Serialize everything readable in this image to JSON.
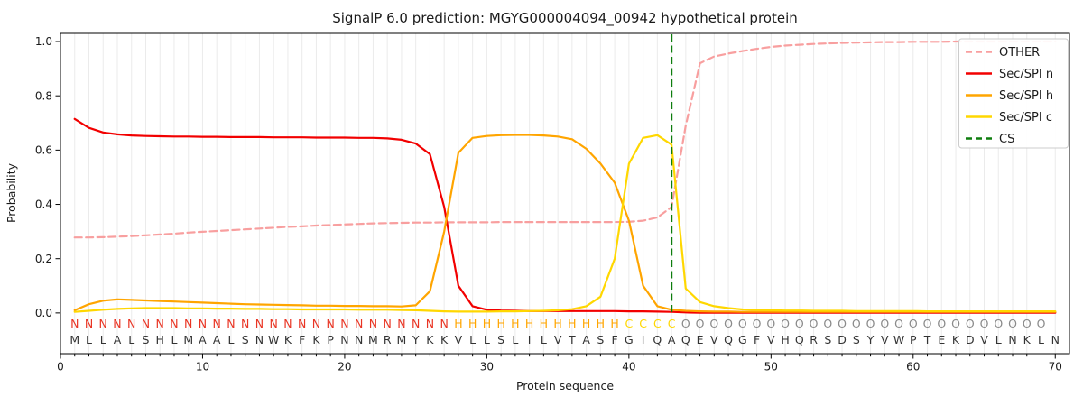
{
  "chart_data": {
    "type": "line",
    "title": "SignalP 6.0 prediction: MGYG000004094_00942 hypothetical protein",
    "xlabel": "Protein sequence",
    "ylabel": "Probability",
    "xlim": [
      0,
      71
    ],
    "ylim": [
      -0.15,
      1.03
    ],
    "xticks": [
      0,
      10,
      20,
      30,
      40,
      50,
      60,
      70
    ],
    "yticks": [
      "0.0",
      "0.2",
      "0.4",
      "0.6",
      "0.8",
      "1.0"
    ],
    "grid": "vertical line at every residue, light gray",
    "legend_position": "upper right",
    "x_positions": "residues 1-70",
    "series": [
      {
        "name": "OTHER",
        "color": "#f89f9f",
        "dash": "dashed",
        "values": [
          0.278,
          0.278,
          0.279,
          0.281,
          0.283,
          0.286,
          0.289,
          0.292,
          0.296,
          0.299,
          0.302,
          0.305,
          0.308,
          0.311,
          0.314,
          0.317,
          0.319,
          0.322,
          0.324,
          0.326,
          0.328,
          0.33,
          0.331,
          0.332,
          0.333,
          0.333,
          0.334,
          0.334,
          0.334,
          0.334,
          0.335,
          0.335,
          0.335,
          0.335,
          0.335,
          0.335,
          0.335,
          0.335,
          0.335,
          0.336,
          0.34,
          0.352,
          0.39,
          0.69,
          0.92,
          0.945,
          0.956,
          0.965,
          0.973,
          0.98,
          0.985,
          0.988,
          0.991,
          0.993,
          0.995,
          0.996,
          0.997,
          0.998,
          0.998,
          0.999,
          0.999,
          0.999,
          1.0,
          1.0,
          1.0,
          1.0,
          1.0,
          1.0,
          1.0,
          1.0
        ]
      },
      {
        "name": "Sec/SPI n",
        "color": "#f20000",
        "dash": "solid",
        "values": [
          0.715,
          0.682,
          0.665,
          0.658,
          0.654,
          0.652,
          0.651,
          0.65,
          0.65,
          0.649,
          0.649,
          0.648,
          0.648,
          0.648,
          0.647,
          0.647,
          0.647,
          0.646,
          0.646,
          0.646,
          0.645,
          0.645,
          0.643,
          0.638,
          0.624,
          0.585,
          0.39,
          0.1,
          0.025,
          0.012,
          0.009,
          0.008,
          0.007,
          0.007,
          0.007,
          0.007,
          0.007,
          0.007,
          0.007,
          0.006,
          0.006,
          0.005,
          0.004,
          0.002,
          0.001,
          0.001,
          0.001,
          0.001,
          0.001,
          0.001,
          0.001,
          0.001,
          0.001,
          0.001,
          0.001,
          0.001,
          0.001,
          0.001,
          0.001,
          0.001,
          0.001,
          0.001,
          0.001,
          0.001,
          0.001,
          0.001,
          0.001,
          0.001,
          0.001,
          0.001
        ]
      },
      {
        "name": "Sec/SPI h",
        "color": "#ffa500",
        "dash": "solid",
        "values": [
          0.01,
          0.032,
          0.045,
          0.05,
          0.048,
          0.046,
          0.044,
          0.042,
          0.04,
          0.038,
          0.036,
          0.034,
          0.032,
          0.031,
          0.03,
          0.029,
          0.028,
          0.027,
          0.027,
          0.026,
          0.026,
          0.025,
          0.025,
          0.024,
          0.028,
          0.08,
          0.3,
          0.59,
          0.645,
          0.652,
          0.655,
          0.656,
          0.656,
          0.654,
          0.65,
          0.64,
          0.605,
          0.55,
          0.48,
          0.34,
          0.1,
          0.025,
          0.012,
          0.008,
          0.006,
          0.005,
          0.005,
          0.004,
          0.004,
          0.004,
          0.004,
          0.004,
          0.004,
          0.004,
          0.004,
          0.004,
          0.004,
          0.004,
          0.004,
          0.004,
          0.004,
          0.004,
          0.004,
          0.004,
          0.004,
          0.004,
          0.004,
          0.004,
          0.004,
          0.004
        ]
      },
      {
        "name": "Sec/SPI c",
        "color": "#ffd700",
        "dash": "solid",
        "values": [
          0.004,
          0.008,
          0.012,
          0.015,
          0.017,
          0.018,
          0.018,
          0.018,
          0.017,
          0.017,
          0.016,
          0.016,
          0.015,
          0.015,
          0.014,
          0.014,
          0.013,
          0.013,
          0.013,
          0.013,
          0.012,
          0.012,
          0.012,
          0.011,
          0.01,
          0.008,
          0.006,
          0.005,
          0.005,
          0.005,
          0.006,
          0.006,
          0.007,
          0.008,
          0.01,
          0.014,
          0.025,
          0.06,
          0.2,
          0.55,
          0.645,
          0.655,
          0.62,
          0.09,
          0.04,
          0.025,
          0.018,
          0.013,
          0.011,
          0.01,
          0.009,
          0.009,
          0.008,
          0.008,
          0.008,
          0.007,
          0.007,
          0.007,
          0.007,
          0.007,
          0.006,
          0.006,
          0.006,
          0.006,
          0.006,
          0.006,
          0.006,
          0.006,
          0.006,
          0.006
        ]
      }
    ],
    "cs_marker": {
      "name": "CS",
      "position": 43,
      "color": "#0d7d0d",
      "dash": "dashed"
    },
    "sequence": "MLLALSHLMAALSNWKFKPNNMRMYKKVLLSLILVTASFGIQAQEVQGFVHQRSDSYVWPTEKDVLNKLN",
    "region_labels": "NNNNNNNNNNNNNNNNNNNNNNNNNNNHHHHHHHHHHHHCCCCOOOOOOOOOOOOOOOOOOOOOOOOOO",
    "region_colors": {
      "N": "#e93423",
      "H": "#ffa500",
      "C": "#ffd700",
      "O": "#8a8a8a"
    },
    "sequence_color": "#333333",
    "colors": {
      "background": "#ffffff",
      "gridline": "#ebebeb",
      "spine": "#000000"
    }
  }
}
